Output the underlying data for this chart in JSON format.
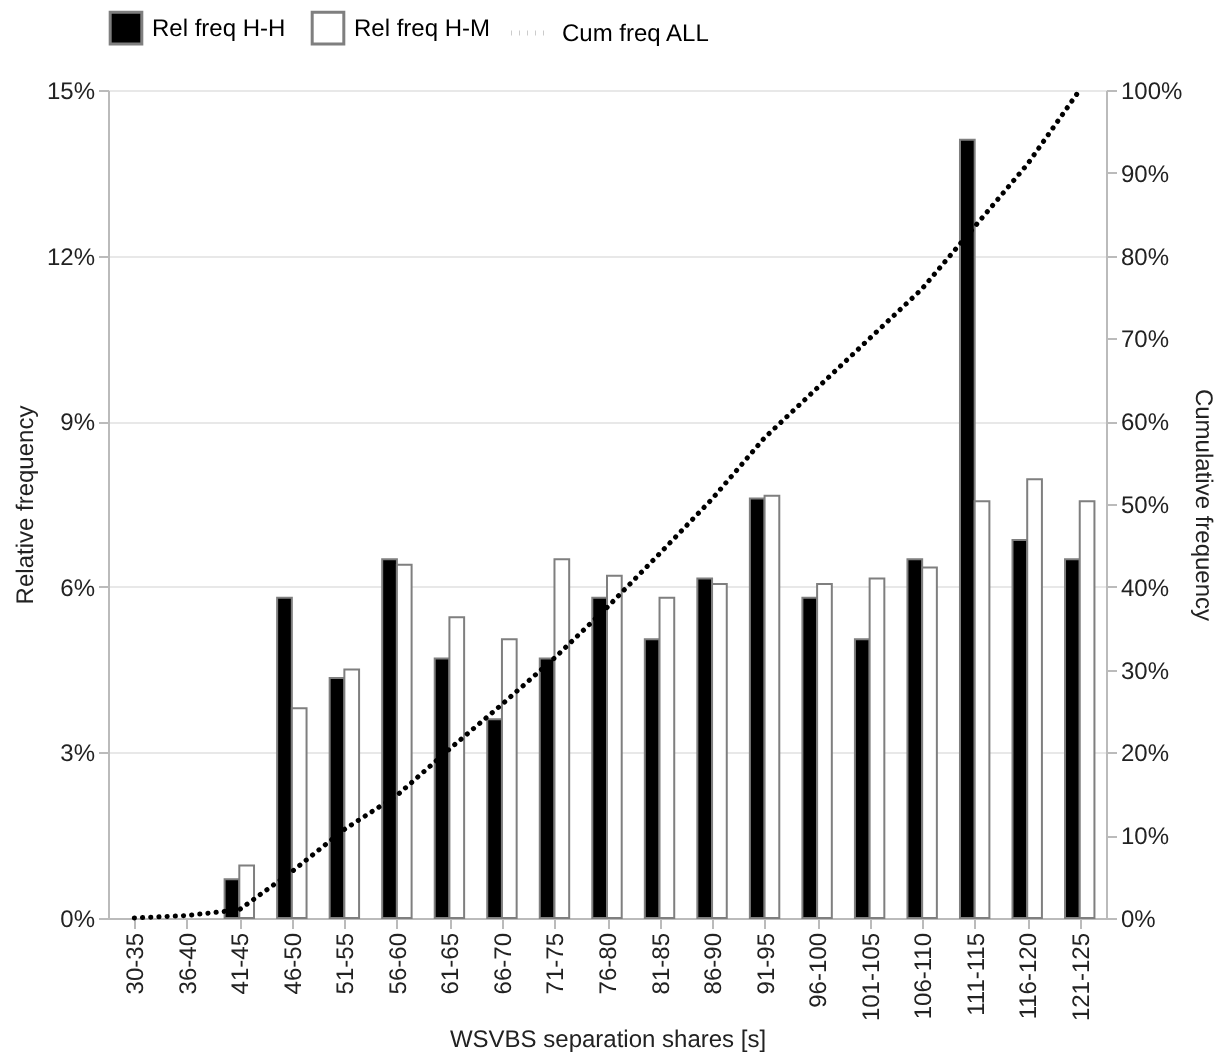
{
  "chart_data": {
    "type": "bar",
    "xlabel": "WSVBS separation shares [s]",
    "ylabel": "Relative frequency",
    "y2label": "Cumulative frequency",
    "categories": [
      "30-35",
      "36-40",
      "41-45",
      "46-50",
      "51-55",
      "56-60",
      "61-65",
      "66-70",
      "71-75",
      "76-80",
      "81-85",
      "86-90",
      "91-95",
      "96-100",
      "101-105",
      "106-110",
      "111-115",
      "116-120",
      "121-125"
    ],
    "series": [
      {
        "name": "Rel freq H-H",
        "color": "#000000",
        "values": [
          0,
          0,
          0.7,
          5.8,
          4.35,
          6.5,
          4.7,
          3.6,
          4.7,
          5.8,
          5.05,
          6.15,
          7.6,
          5.8,
          5.05,
          6.5,
          14.1,
          6.85,
          6.5
        ]
      },
      {
        "name": "Rel freq H-M",
        "color": "#ffffff",
        "values": [
          0,
          0,
          0.95,
          3.8,
          4.5,
          6.4,
          5.45,
          5.05,
          6.5,
          6.2,
          5.8,
          6.05,
          7.65,
          6.05,
          6.15,
          6.35,
          7.55,
          7.95,
          7.55
        ]
      },
      {
        "name": "Cum freq ALL",
        "type": "line",
        "axis": "y2",
        "color": "#000000",
        "line_style": "dotted",
        "values": [
          0,
          0.3,
          1,
          5.6,
          10.7,
          14.8,
          20.4,
          25.8,
          31.4,
          37.5,
          44,
          50.6,
          58,
          64,
          70,
          76,
          83.5,
          91,
          100
        ]
      }
    ],
    "ylim": [
      0,
      15
    ],
    "yticks": [
      {
        "value": 0,
        "label": "0%"
      },
      {
        "value": 3,
        "label": "3%"
      },
      {
        "value": 6,
        "label": "6%"
      },
      {
        "value": 9,
        "label": "9%"
      },
      {
        "value": 12,
        "label": "12%"
      },
      {
        "value": 15,
        "label": "15%"
      }
    ],
    "y2lim": [
      0,
      100
    ],
    "y2ticks": [
      {
        "value": 0,
        "label": "0%"
      },
      {
        "value": 10,
        "label": "10%"
      },
      {
        "value": 20,
        "label": "20%"
      },
      {
        "value": 30,
        "label": "30%"
      },
      {
        "value": 40,
        "label": "40%"
      },
      {
        "value": 50,
        "label": "50%"
      },
      {
        "value": 60,
        "label": "60%"
      },
      {
        "value": 70,
        "label": "70%"
      },
      {
        "value": 80,
        "label": "80%"
      },
      {
        "value": 90,
        "label": "90%"
      },
      {
        "value": 100,
        "label": "100%"
      }
    ],
    "grid": "y",
    "legend": "top"
  }
}
